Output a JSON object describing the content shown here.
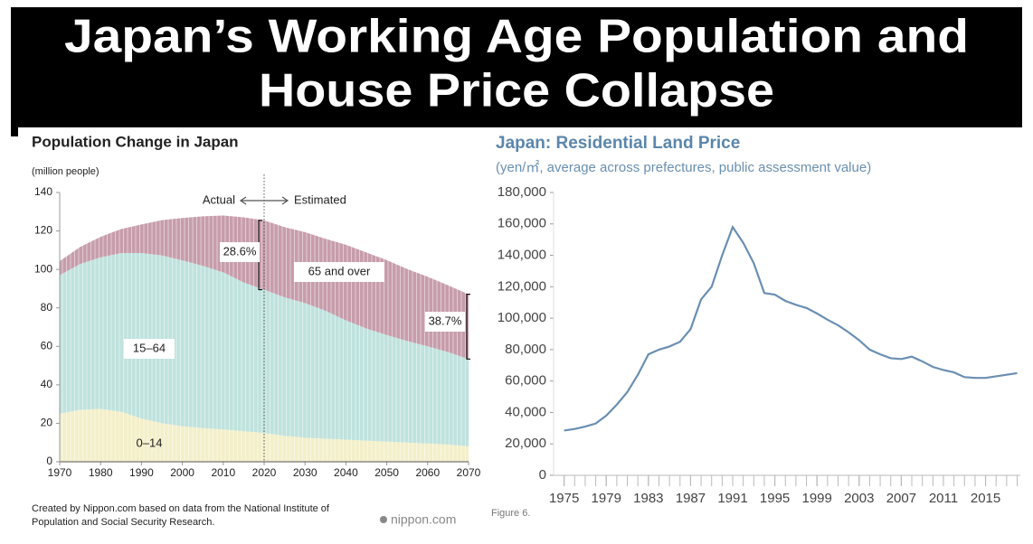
{
  "slide_title": [
    "Japan’s Working Age Population and",
    "House Price Collapse"
  ],
  "chart_data": [
    {
      "type": "area",
      "stacked": true,
      "title": "Population Change in Japan",
      "y_label": "(million people)",
      "x": [
        1970,
        1975,
        1980,
        1985,
        1990,
        1995,
        2000,
        2005,
        2010,
        2015,
        2020,
        2025,
        2030,
        2035,
        2040,
        2045,
        2050,
        2055,
        2060,
        2065,
        2070
      ],
      "series": [
        {
          "name": "0–14",
          "color": "#f3efca",
          "values": [
            25,
            27,
            27.5,
            26,
            22.5,
            20,
            18.5,
            17.5,
            16.8,
            15.9,
            15,
            13.5,
            12.5,
            12,
            11.5,
            11,
            10.5,
            10,
            9.5,
            9,
            8
          ]
        },
        {
          "name": "15–64",
          "color": "#bfe2dd",
          "values": [
            72,
            75.8,
            78.8,
            82.5,
            86,
            87.3,
            86.2,
            84.4,
            81.7,
            77.3,
            74.5,
            72,
            70,
            66.5,
            62,
            58.3,
            55.4,
            52.8,
            50.5,
            48,
            45.4
          ]
        },
        {
          "name": "65 and over",
          "color": "#c79dab",
          "values": [
            7.3,
            8.9,
            10.6,
            12.5,
            14.9,
            18.3,
            22,
            25.7,
            29.5,
            33.9,
            36,
            36.5,
            36.9,
            37.4,
            39.3,
            39.5,
            38.9,
            37.4,
            36.2,
            34.7,
            33.7
          ]
        }
      ],
      "xlim": [
        1970,
        2070
      ],
      "xticks": [
        1970,
        1980,
        1990,
        2000,
        2010,
        2020,
        2030,
        2040,
        2050,
        2060,
        2070
      ],
      "ylim": [
        0,
        140
      ],
      "yticks": [
        0,
        20,
        40,
        60,
        80,
        100,
        120,
        140
      ],
      "divider_x": 2020,
      "annotations": [
        "Actual",
        "Estimated",
        "28.6%",
        "38.7%"
      ],
      "source": [
        "Created by Nippon.com based on data from the National Institute of",
        "Population and Social Security Research."
      ],
      "logo": "nippon.com"
    },
    {
      "type": "line",
      "title": "Japan: Residential Land Price",
      "subtitle": "(yen/㎡, average across prefectures, public assessment value)",
      "x": [
        1975,
        1976,
        1977,
        1978,
        1979,
        1980,
        1981,
        1982,
        1983,
        1984,
        1985,
        1986,
        1987,
        1988,
        1989,
        1990,
        1991,
        1992,
        1993,
        1994,
        1995,
        1996,
        1997,
        1998,
        1999,
        2000,
        2001,
        2002,
        2003,
        2004,
        2005,
        2006,
        2007,
        2008,
        2009,
        2010,
        2011,
        2012,
        2013,
        2014,
        2015,
        2016,
        2017,
        2018
      ],
      "values": [
        28500,
        29500,
        31000,
        33000,
        38000,
        45000,
        53000,
        64000,
        77000,
        80000,
        82000,
        85000,
        93000,
        112000,
        120000,
        140000,
        158000,
        148000,
        135000,
        116000,
        115000,
        111000,
        108500,
        106500,
        103000,
        99000,
        95500,
        91000,
        86000,
        80000,
        77000,
        74500,
        74000,
        75500,
        72500,
        69000,
        67000,
        65500,
        62500,
        62000,
        62000,
        63000,
        64000,
        65000
      ],
      "color": "#6a8fb2",
      "xlim": [
        1974,
        2018.3
      ],
      "xticks": [
        1975,
        1979,
        1983,
        1987,
        1991,
        1995,
        1999,
        2003,
        2007,
        2011,
        2015
      ],
      "ylim": [
        0,
        180000
      ],
      "yticks": [
        0,
        {
          "value": 20000,
          "label": "20,000"
        },
        {
          "value": 40000,
          "label": "40,000"
        },
        {
          "value": 60000,
          "label": "60,000"
        },
        {
          "value": 80000,
          "label": "80,000"
        },
        {
          "value": 100000,
          "label": "100,000"
        },
        {
          "value": 120000,
          "label": "120,000"
        },
        {
          "value": 140000,
          "label": "140,000"
        },
        {
          "value": 160000,
          "label": "160,000"
        },
        {
          "value": 180000,
          "label": "180,000"
        }
      ],
      "caption": "Figure 6."
    }
  ]
}
